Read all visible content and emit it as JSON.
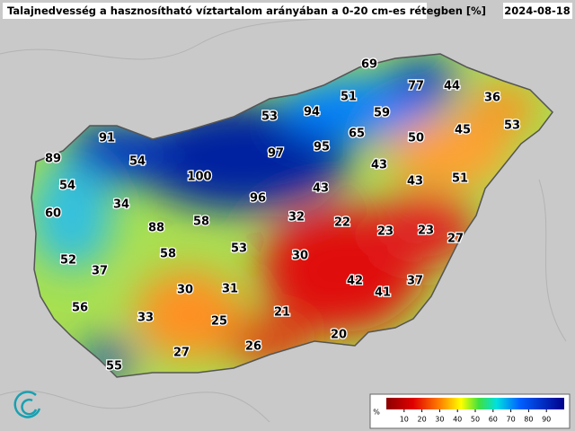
{
  "header": {
    "title": "Talajnedvesség a hasznosítható víztartalom arányában a 0-20 cm-es rétegben [%]",
    "date": "2024-08-18"
  },
  "stations": [
    69,
    77,
    44,
    51,
    36,
    53,
    94,
    59,
    53,
    91,
    65,
    50,
    45,
    89,
    97,
    95,
    54,
    43,
    100,
    54,
    43,
    43,
    51,
    34,
    96,
    60,
    32,
    22,
    88,
    58,
    23,
    23,
    27,
    53,
    52,
    30,
    58,
    37,
    42,
    37,
    30,
    31,
    41,
    56,
    33,
    21,
    25,
    20,
    26,
    27,
    55
  ],
  "legend": {
    "unit": "%",
    "ticks": [
      10,
      20,
      30,
      40,
      50,
      60,
      70,
      80,
      90
    ]
  }
}
